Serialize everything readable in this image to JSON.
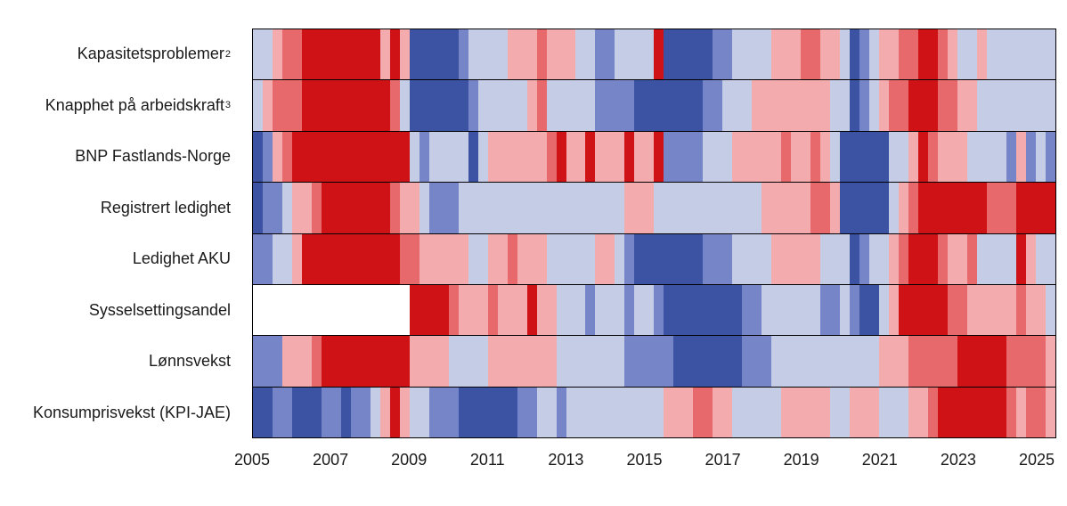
{
  "chart_data": {
    "type": "heatmap",
    "title": "",
    "xlabel": "",
    "ylabel": "",
    "grid": false,
    "legend": "none",
    "x_axis": {
      "start_year": 2005.0,
      "end_year": 2025.5,
      "tick_labels": [
        "2005",
        "2007",
        "2009",
        "2011",
        "2013",
        "2015",
        "2017",
        "2019",
        "2021",
        "2023",
        "2025"
      ],
      "tick_years": [
        2005,
        2007,
        2009,
        2011,
        2013,
        2015,
        2017,
        2019,
        2021,
        2023,
        2025
      ]
    },
    "resolution": "quarterly",
    "quarters_per_row": 82,
    "value_scale": {
      "3": "far above normal (dark red)",
      "2": "above normal (medium red)",
      "1": "slightly above normal (light red)",
      "-1": "slightly below normal (light blue)",
      "-2": "below normal (medium blue)",
      "-3": "far below normal (dark blue)",
      "0": "no data (white)"
    },
    "palette": {
      "3": "#cf1216",
      "2": "#e8696b",
      "1": "#f3abad",
      "-1": "#c4cce6",
      "-2": "#7585c7",
      "-3": "#3c53a4",
      "0": "#ffffff"
    },
    "rows": [
      {
        "label": "Kapasitetsproblemer",
        "sup": "2",
        "values": [
          -1,
          -1,
          1,
          2,
          2,
          3,
          3,
          3,
          3,
          3,
          3,
          3,
          3,
          1,
          3,
          1,
          -3,
          -3,
          -3,
          -3,
          -3,
          -2,
          -1,
          -1,
          -1,
          -1,
          1,
          1,
          1,
          2,
          1,
          1,
          1,
          -1,
          -1,
          -2,
          -2,
          -1,
          -1,
          -1,
          -1,
          3,
          -3,
          -3,
          -3,
          -3,
          -3,
          -2,
          -2,
          -1,
          -1,
          -1,
          -1,
          1,
          1,
          1,
          2,
          2,
          1,
          1,
          -1,
          -3,
          -2,
          -1,
          1,
          1,
          2,
          2,
          3,
          3,
          2,
          1,
          -1,
          -1,
          1,
          -1,
          -1,
          -1,
          -1,
          -1,
          -1,
          -1
        ]
      },
      {
        "label": "Knapphet på arbeidskraft",
        "sup": "3",
        "values": [
          -1,
          1,
          2,
          2,
          2,
          3,
          3,
          3,
          3,
          3,
          3,
          3,
          3,
          3,
          2,
          -1,
          -3,
          -3,
          -3,
          -3,
          -3,
          -3,
          -2,
          -1,
          -1,
          -1,
          -1,
          -1,
          1,
          2,
          -1,
          -1,
          -1,
          -1,
          -1,
          -2,
          -2,
          -2,
          -2,
          -3,
          -3,
          -3,
          -3,
          -3,
          -3,
          -3,
          -2,
          -2,
          -1,
          -1,
          -1,
          1,
          1,
          1,
          1,
          1,
          1,
          1,
          1,
          -1,
          -1,
          -3,
          -2,
          -1,
          1,
          2,
          2,
          3,
          3,
          3,
          2,
          2,
          1,
          1,
          -1,
          -1,
          -1,
          -1,
          -1,
          -1,
          -1,
          -1
        ]
      },
      {
        "label": "BNP Fastlands-Norge",
        "sup": "",
        "values": [
          -3,
          -2,
          1,
          2,
          3,
          3,
          3,
          3,
          3,
          3,
          3,
          3,
          3,
          3,
          3,
          3,
          -1,
          -2,
          -1,
          -1,
          -1,
          -1,
          -3,
          -1,
          1,
          1,
          1,
          1,
          1,
          1,
          2,
          3,
          1,
          1,
          3,
          1,
          1,
          1,
          3,
          1,
          1,
          3,
          -2,
          -2,
          -2,
          -2,
          -1,
          -1,
          -1,
          1,
          1,
          1,
          1,
          1,
          2,
          1,
          1,
          2,
          1,
          -1,
          -3,
          -3,
          -3,
          -3,
          -3,
          -1,
          -1,
          1,
          3,
          2,
          1,
          1,
          1,
          -1,
          -1,
          -1,
          -1,
          -2,
          1,
          -2,
          -1,
          -2
        ]
      },
      {
        "label": "Registrert ledighet",
        "sup": "",
        "values": [
          -3,
          -2,
          -2,
          -1,
          1,
          1,
          2,
          3,
          3,
          3,
          3,
          3,
          3,
          3,
          2,
          1,
          1,
          -1,
          -2,
          -2,
          -2,
          -1,
          -1,
          -1,
          -1,
          -1,
          -1,
          -1,
          -1,
          -1,
          -1,
          -1,
          -1,
          -1,
          -1,
          -1,
          -1,
          -1,
          1,
          1,
          1,
          -1,
          -1,
          -1,
          -1,
          -1,
          -1,
          -1,
          -1,
          -1,
          -1,
          -1,
          1,
          1,
          1,
          1,
          1,
          2,
          2,
          1,
          -3,
          -3,
          -3,
          -3,
          -3,
          -1,
          1,
          2,
          3,
          3,
          3,
          3,
          3,
          3,
          3,
          2,
          2,
          2,
          3,
          3,
          3,
          3
        ]
      },
      {
        "label": "Ledighet AKU",
        "sup": "",
        "values": [
          -2,
          -2,
          -1,
          -1,
          1,
          3,
          3,
          3,
          3,
          3,
          3,
          3,
          3,
          3,
          3,
          2,
          2,
          1,
          1,
          1,
          1,
          1,
          -1,
          -1,
          1,
          1,
          2,
          1,
          1,
          1,
          -1,
          -1,
          -1,
          -1,
          -1,
          1,
          1,
          -1,
          -2,
          -3,
          -3,
          -3,
          -3,
          -3,
          -3,
          -3,
          -2,
          -2,
          -2,
          -1,
          -1,
          -1,
          -1,
          1,
          1,
          1,
          1,
          1,
          -1,
          -1,
          -1,
          -3,
          -2,
          -1,
          -1,
          1,
          2,
          3,
          3,
          3,
          2,
          1,
          1,
          2,
          -1,
          -1,
          -1,
          -1,
          3,
          1,
          -1,
          -1
        ]
      },
      {
        "label": "Sysselsettingsandel",
        "sup": "",
        "values": [
          0,
          0,
          0,
          0,
          0,
          0,
          0,
          0,
          0,
          0,
          0,
          0,
          0,
          0,
          0,
          0,
          3,
          3,
          3,
          3,
          2,
          1,
          1,
          1,
          2,
          1,
          1,
          1,
          3,
          1,
          1,
          -1,
          -1,
          -1,
          -2,
          -1,
          -1,
          -1,
          -2,
          -1,
          -1,
          -2,
          -3,
          -3,
          -3,
          -3,
          -3,
          -3,
          -3,
          -3,
          -2,
          -2,
          -1,
          -1,
          -1,
          -1,
          -1,
          -1,
          -2,
          -2,
          -1,
          -2,
          -3,
          -3,
          -1,
          1,
          3,
          3,
          3,
          3,
          3,
          2,
          2,
          1,
          1,
          1,
          1,
          1,
          2,
          1,
          1,
          -1
        ]
      },
      {
        "label": "Lønnsvekst",
        "sup": "",
        "values": [
          -2,
          -2,
          -2,
          1,
          1,
          1,
          2,
          3,
          3,
          3,
          3,
          3,
          3,
          3,
          3,
          3,
          1,
          1,
          1,
          1,
          -1,
          -1,
          -1,
          -1,
          1,
          1,
          1,
          1,
          1,
          1,
          1,
          -1,
          -1,
          -1,
          -1,
          -1,
          -1,
          -1,
          -2,
          -2,
          -2,
          -2,
          -2,
          -3,
          -3,
          -3,
          -3,
          -3,
          -3,
          -3,
          -2,
          -2,
          -2,
          -1,
          -1,
          -1,
          -1,
          -1,
          -1,
          -1,
          -1,
          -1,
          -1,
          -1,
          1,
          1,
          1,
          2,
          2,
          2,
          2,
          2,
          3,
          3,
          3,
          3,
          3,
          2,
          2,
          2,
          2,
          1
        ]
      },
      {
        "label": "Konsumprisvekst (KPI-JAE)",
        "sup": "",
        "values": [
          -3,
          -3,
          -2,
          -2,
          -3,
          -3,
          -3,
          -2,
          -2,
          -3,
          -2,
          -2,
          -1,
          1,
          3,
          1,
          -1,
          -1,
          -2,
          -2,
          -2,
          -3,
          -3,
          -3,
          -3,
          -3,
          -3,
          -2,
          -2,
          -1,
          -1,
          -2,
          -1,
          -1,
          -1,
          -1,
          -1,
          -1,
          -1,
          -1,
          -1,
          -1,
          1,
          1,
          1,
          2,
          2,
          1,
          1,
          -1,
          -1,
          -1,
          -1,
          -1,
          1,
          1,
          1,
          1,
          1,
          -1,
          -1,
          1,
          1,
          1,
          -1,
          -1,
          -1,
          1,
          1,
          2,
          3,
          3,
          3,
          3,
          3,
          3,
          3,
          2,
          1,
          2,
          2,
          1
        ]
      }
    ]
  }
}
